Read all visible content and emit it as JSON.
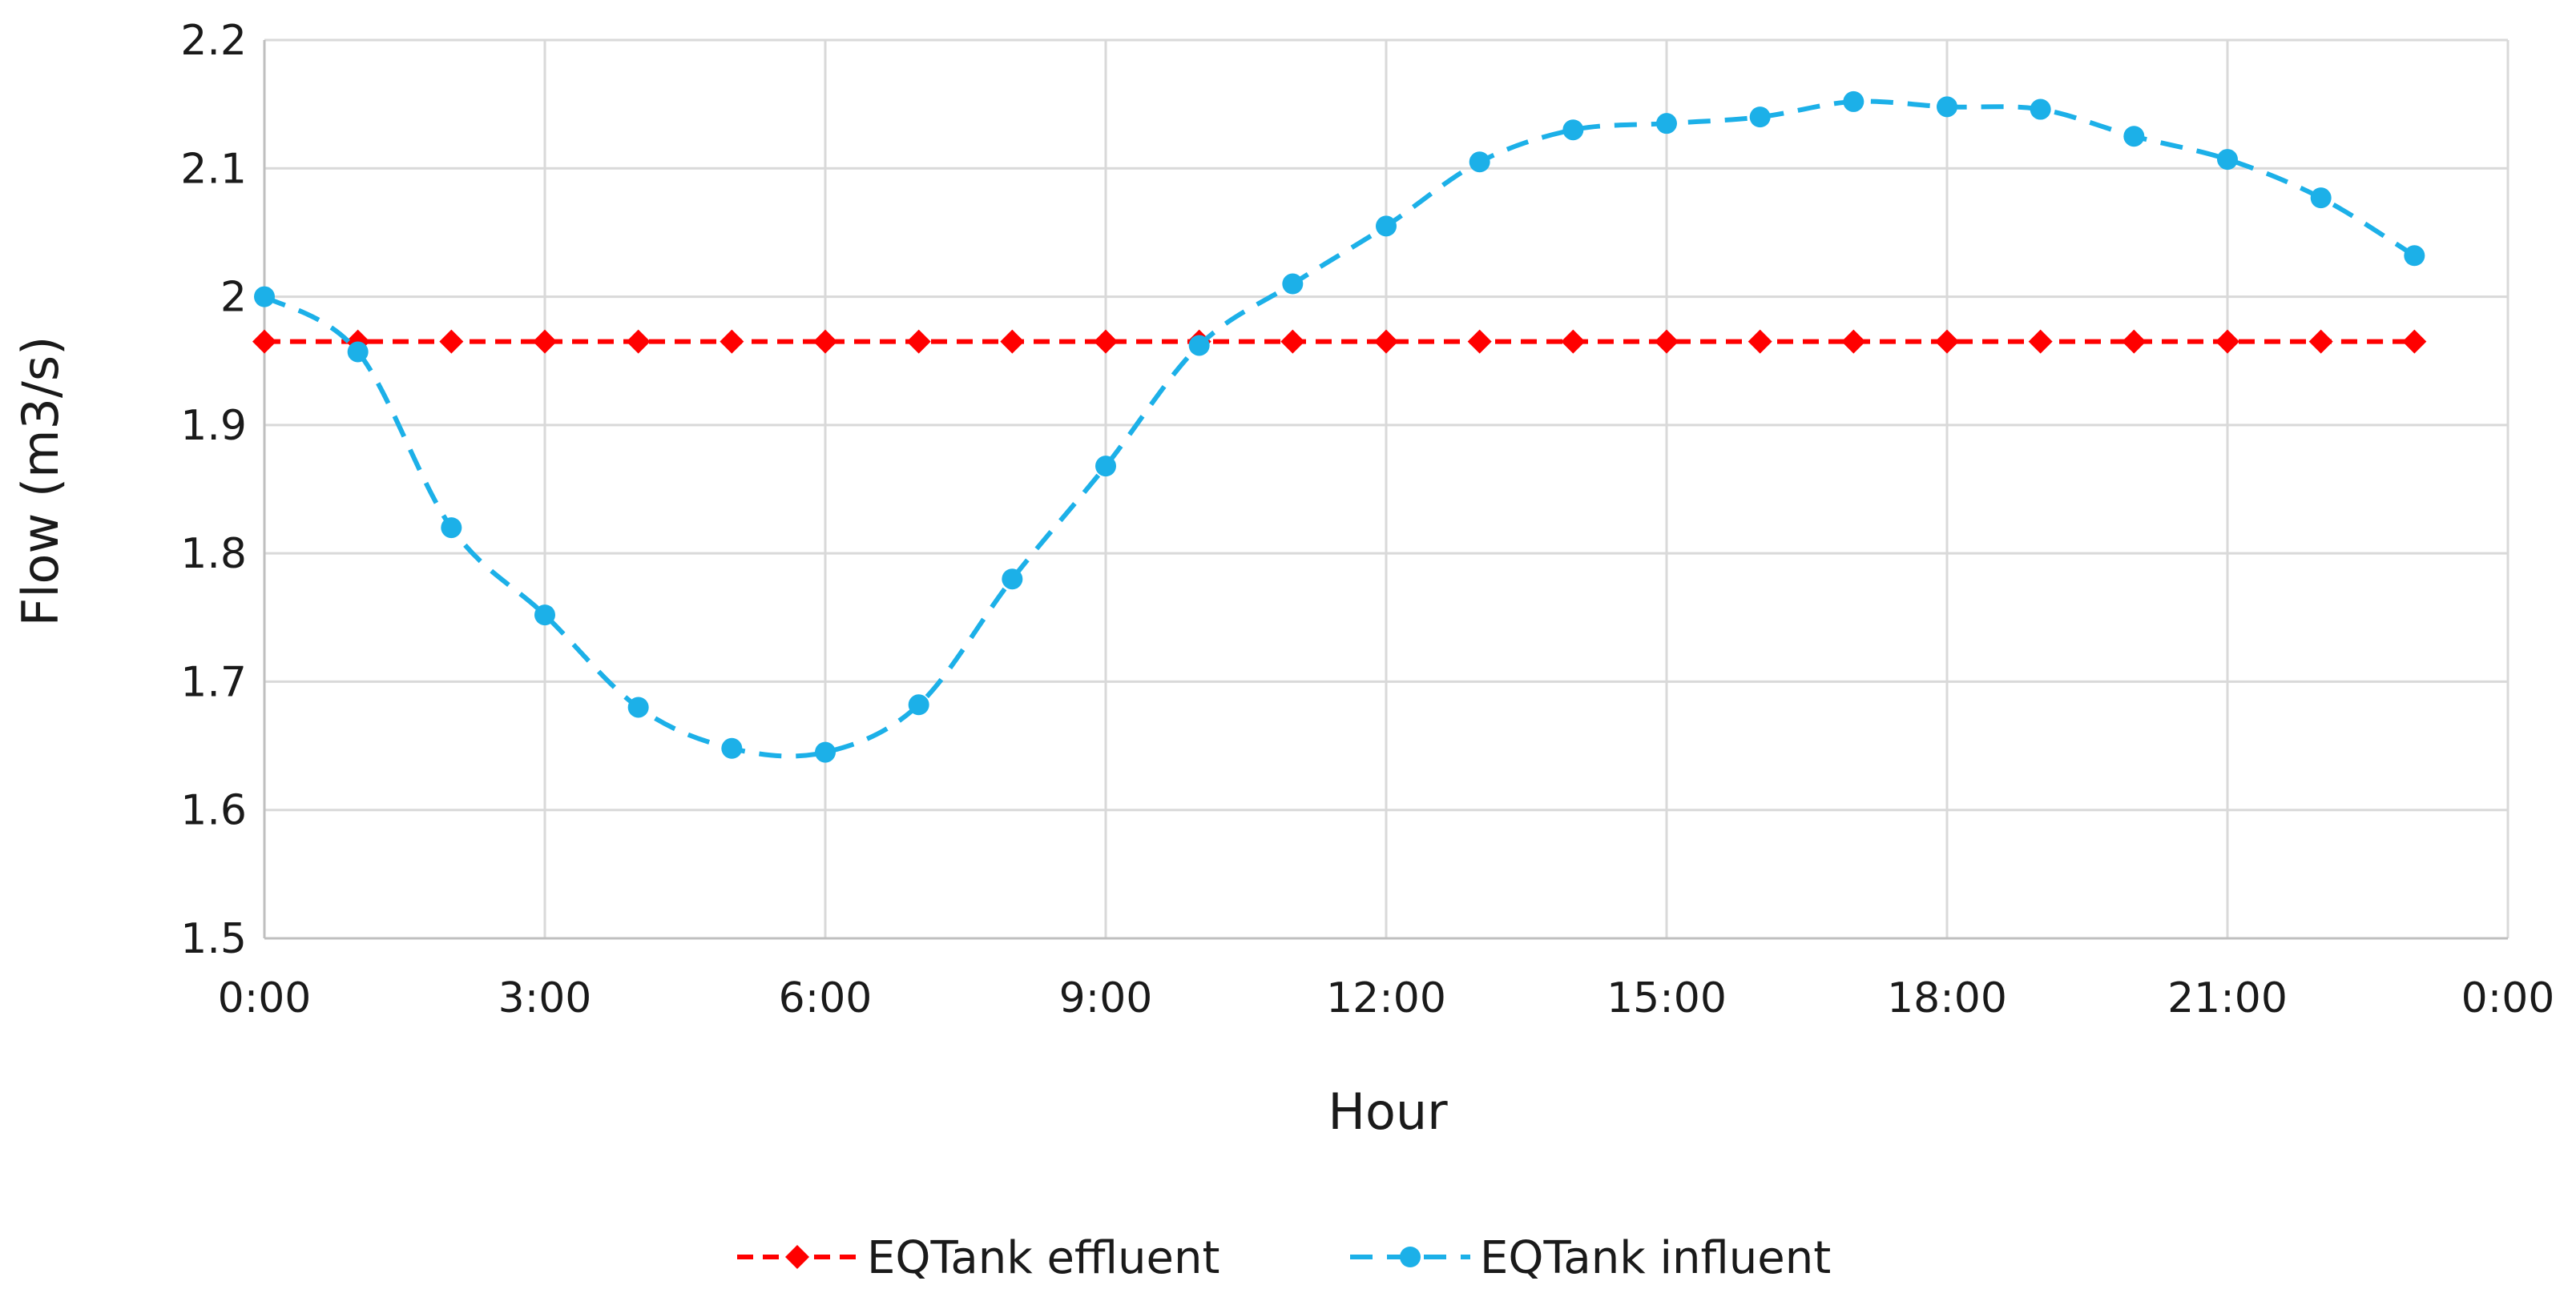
{
  "chart_data": {
    "type": "line",
    "title": "",
    "xlabel": "Hour",
    "ylabel": "Flow (m3/s)",
    "x_unit": "hour",
    "xlim": [
      0,
      24
    ],
    "ylim": [
      1.5,
      2.2
    ],
    "x_ticks": [
      0,
      3,
      6,
      9,
      12,
      15,
      18,
      21,
      24
    ],
    "x_tick_labels": [
      "0:00",
      "3:00",
      "6:00",
      "9:00",
      "12:00",
      "15:00",
      "18:00",
      "21:00",
      "0:00"
    ],
    "y_ticks": [
      1.5,
      1.6,
      1.7,
      1.8,
      1.9,
      2.0,
      2.1,
      2.2
    ],
    "y_tick_labels": [
      "1.5",
      "1.6",
      "1.7",
      "1.8",
      "1.9",
      "2",
      "2.1",
      "2.2"
    ],
    "grid": true,
    "legend_position": "bottom",
    "x": [
      0,
      1,
      2,
      3,
      4,
      5,
      6,
      7,
      8,
      9,
      10,
      11,
      12,
      13,
      14,
      15,
      16,
      17,
      18,
      19,
      20,
      21,
      22,
      23
    ],
    "series": [
      {
        "name": "EQTank effluent",
        "color": "#ff0000",
        "line_style": "dashed",
        "marker": "diamond",
        "values": [
          1.965,
          1.965,
          1.965,
          1.965,
          1.965,
          1.965,
          1.965,
          1.965,
          1.965,
          1.965,
          1.965,
          1.965,
          1.965,
          1.965,
          1.965,
          1.965,
          1.965,
          1.965,
          1.965,
          1.965,
          1.965,
          1.965,
          1.965,
          1.965
        ]
      },
      {
        "name": "EQTank influent",
        "color": "#1cb0e8",
        "line_style": "dashed",
        "marker": "circle",
        "values": [
          2.0,
          1.957,
          1.82,
          1.752,
          1.68,
          1.648,
          1.645,
          1.682,
          1.78,
          1.868,
          1.962,
          2.01,
          2.055,
          2.105,
          2.13,
          2.135,
          2.14,
          2.152,
          2.148,
          2.146,
          2.125,
          2.107,
          2.077,
          2.032
        ]
      }
    ]
  }
}
